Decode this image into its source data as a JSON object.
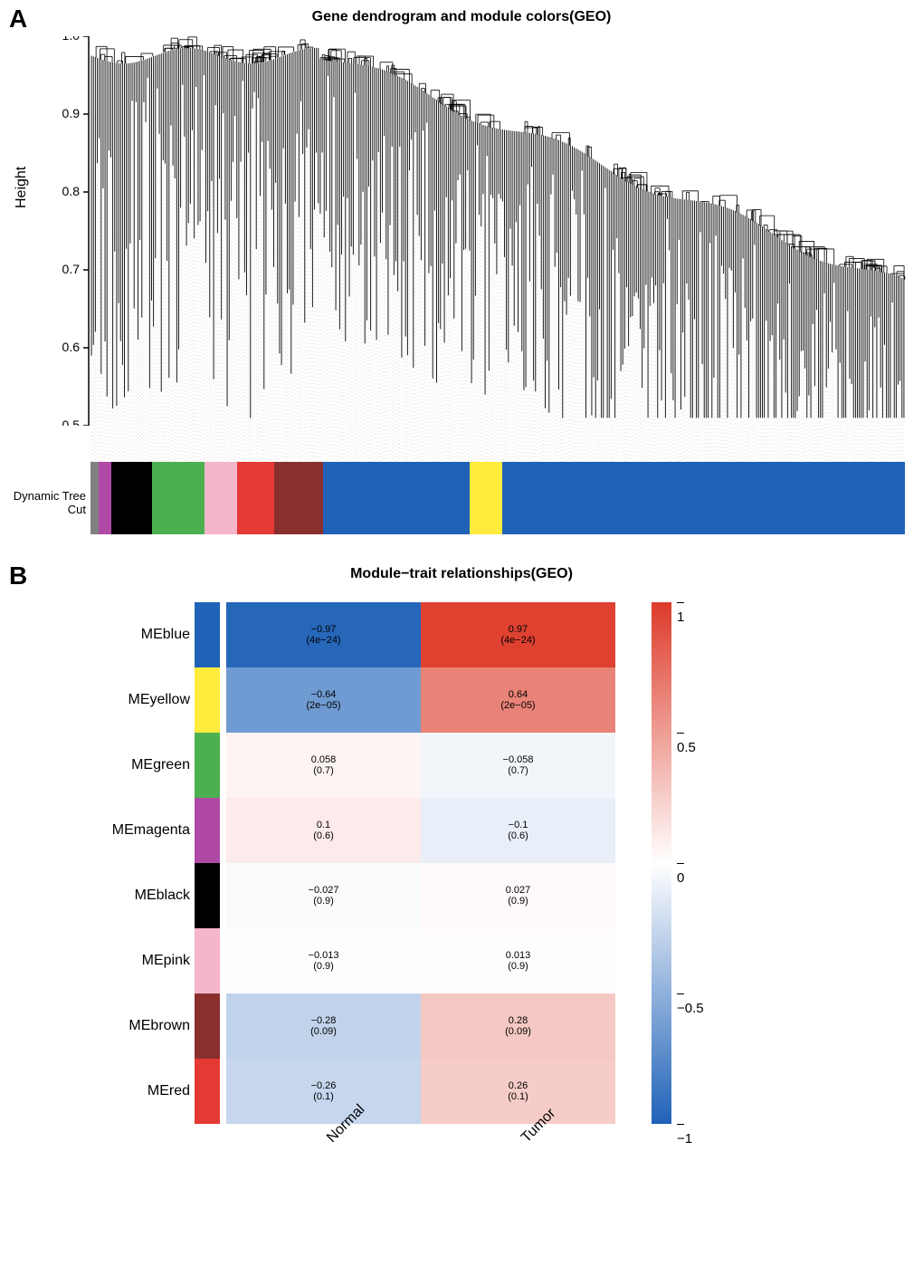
{
  "panel_a": {
    "label": "A",
    "title": "Gene dendrogram and module colors(GEO)",
    "title_fontsize": 20,
    "y_label": "Height",
    "y_ticks": [
      0.5,
      0.6,
      0.7,
      0.8,
      0.9,
      1.0
    ],
    "ylim": [
      0.5,
      1.0
    ],
    "row_label": "Dynamic Tree Cut",
    "module_bar_segments": [
      {
        "color": "#808080",
        "width": 1.0
      },
      {
        "color": "#b049a5",
        "width": 1.5
      },
      {
        "color": "#000000",
        "width": 5.0
      },
      {
        "color": "#4cb050",
        "width": 6.5
      },
      {
        "color": "#f5b6c9",
        "width": 4.0
      },
      {
        "color": "#e53935",
        "width": 4.5
      },
      {
        "color": "#8b2e2e",
        "width": 6.0
      },
      {
        "color": "#2062b8",
        "width": 18.0
      },
      {
        "color": "#ffeb3b",
        "width": 4.0
      },
      {
        "color": "#2062b8",
        "width": 49.5
      }
    ],
    "dendro_color": "#000000",
    "background_color": "#ffffff"
  },
  "panel_b": {
    "label": "B",
    "title": "Module−trait relationships(GEO)",
    "title_fontsize": 20,
    "columns": [
      "Normal",
      "Tumor"
    ],
    "rows": [
      {
        "name": "MEblue",
        "swatch": "#2062b8",
        "normal": {
          "r": -0.97,
          "p": "4e−24"
        },
        "tumor": {
          "r": 0.97,
          "p": "4e−24"
        }
      },
      {
        "name": "MEyellow",
        "swatch": "#ffeb3b",
        "normal": {
          "r": -0.64,
          "p": "2e−05"
        },
        "tumor": {
          "r": 0.64,
          "p": "2e−05"
        }
      },
      {
        "name": "MEgreen",
        "swatch": "#4cb050",
        "normal": {
          "r": 0.058,
          "p": "0.7"
        },
        "tumor": {
          "r": -0.058,
          "p": "0.7"
        }
      },
      {
        "name": "MEmagenta",
        "swatch": "#b049a5",
        "normal": {
          "r": 0.1,
          "p": "0.6"
        },
        "tumor": {
          "r": -0.1,
          "p": "0.6"
        }
      },
      {
        "name": "MEblack",
        "swatch": "#000000",
        "normal": {
          "r": -0.027,
          "p": "0.9"
        },
        "tumor": {
          "r": 0.027,
          "p": "0.9"
        }
      },
      {
        "name": "MEpink",
        "swatch": "#f5b6c9",
        "normal": {
          "r": -0.013,
          "p": "0.9"
        },
        "tumor": {
          "r": 0.013,
          "p": "0.9"
        }
      },
      {
        "name": "MEbrown",
        "swatch": "#8b2e2e",
        "normal": {
          "r": -0.28,
          "p": "0.09"
        },
        "tumor": {
          "r": 0.28,
          "p": "0.09"
        }
      },
      {
        "name": "MEred",
        "swatch": "#e53935",
        "normal": {
          "r": -0.26,
          "p": "0.1"
        },
        "tumor": {
          "r": 0.26,
          "p": "0.1"
        }
      }
    ],
    "colorbar": {
      "ticks": [
        -1,
        -0.5,
        0,
        0.5,
        1
      ],
      "min": -1,
      "max": 1,
      "neg_color": "#2062b8",
      "zero_color": "#ffffff",
      "pos_color": "#dd3b2a"
    },
    "label_fontsize": 16,
    "cell_fontsize": 11
  }
}
